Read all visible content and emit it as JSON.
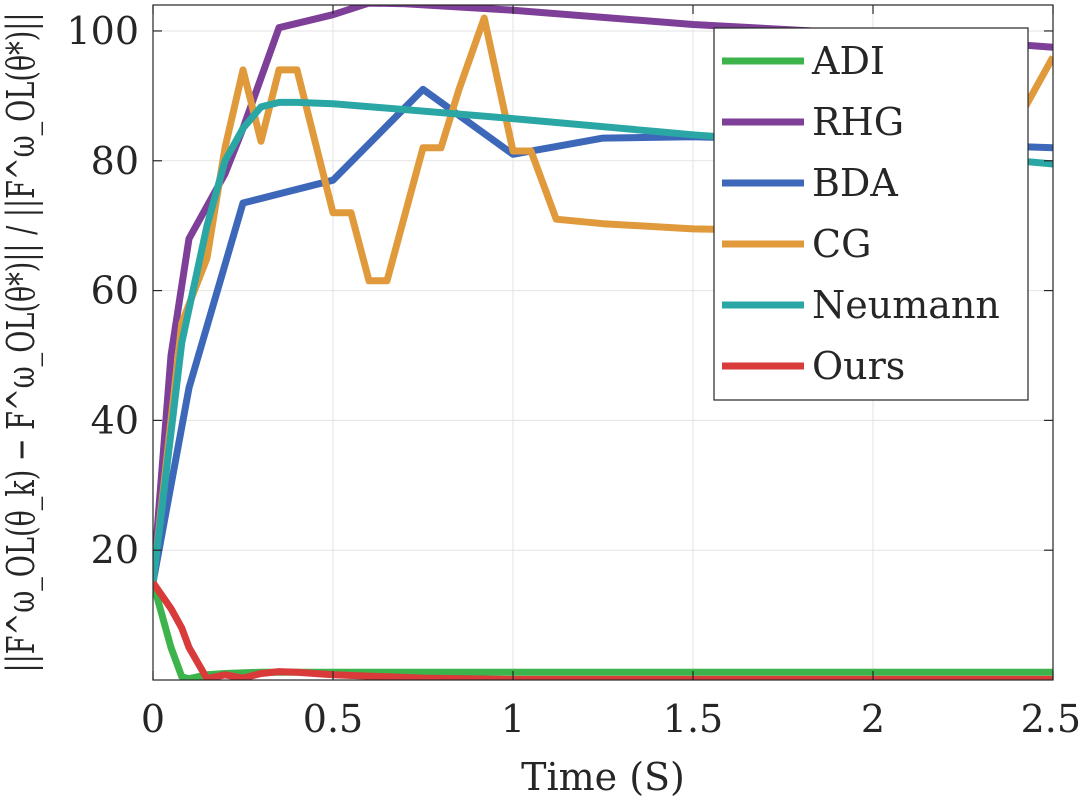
{
  "chart_data": {
    "type": "line",
    "xlabel": "Time (S)",
    "ylabel": "||F^ω_OL(θ_k) − F^ω_OL(θ*)|| / ||F^ω_OL(θ*)||",
    "xlim": [
      0,
      2.5
    ],
    "ylim": [
      0,
      104
    ],
    "xticks": [
      0,
      0.5,
      1,
      1.5,
      2,
      2.5
    ],
    "xtick_labels": [
      "0",
      "0.5",
      "1",
      "1.5",
      "2",
      "2.5"
    ],
    "yticks": [
      20,
      40,
      60,
      80,
      100
    ],
    "ytick_labels": [
      "20",
      "40",
      "60",
      "80",
      "100"
    ],
    "grid": true,
    "legend_position": "top-right",
    "series": [
      {
        "name": "ADI",
        "color": "#3cb44b",
        "x": [
          0,
          0.05,
          0.08,
          0.1,
          0.15,
          0.2,
          0.3,
          0.5,
          1.0,
          1.5,
          2.0,
          2.5
        ],
        "y": [
          15,
          5,
          0.5,
          0.2,
          0.8,
          1.0,
          1.2,
          1.2,
          1.2,
          1.2,
          1.2,
          1.2
        ]
      },
      {
        "name": "RHG",
        "color": "#7e3f98",
        "x": [
          0,
          0.05,
          0.1,
          0.2,
          0.25,
          0.35,
          0.5,
          0.6,
          0.7,
          1.0,
          1.5,
          2.0,
          2.5
        ],
        "y": [
          15,
          50,
          68,
          78,
          85,
          100.5,
          102.5,
          104.3,
          104.2,
          103.2,
          101,
          99.5,
          97.5
        ]
      },
      {
        "name": "BDA",
        "color": "#3d67b8",
        "x": [
          0,
          0.1,
          0.25,
          0.5,
          0.75,
          1.0,
          1.25,
          1.5,
          2.0,
          2.5
        ],
        "y": [
          15,
          45,
          73.5,
          77,
          91,
          81,
          83.5,
          83.7,
          83,
          82
        ]
      },
      {
        "name": "CG",
        "color": "#e09a3c",
        "x": [
          0,
          0.08,
          0.15,
          0.2,
          0.25,
          0.3,
          0.35,
          0.4,
          0.5,
          0.55,
          0.6,
          0.65,
          0.75,
          0.8,
          0.85,
          0.92,
          1.0,
          1.05,
          1.12,
          1.25,
          1.5,
          2.0,
          2.1,
          2.2,
          2.3,
          2.4,
          2.5
        ],
        "y": [
          15,
          55,
          65,
          82,
          94,
          83,
          94,
          94,
          72,
          72,
          61.5,
          61.5,
          82,
          82,
          91,
          102,
          81.5,
          81.5,
          71,
          70.3,
          69.5,
          69,
          82,
          93,
          82,
          86,
          96
        ]
      },
      {
        "name": "Neumann",
        "color": "#2aa7a4",
        "x": [
          0,
          0.08,
          0.15,
          0.2,
          0.25,
          0.3,
          0.35,
          0.4,
          0.5,
          1.0,
          1.5,
          2.0,
          2.5
        ],
        "y": [
          15,
          52,
          70,
          80,
          85,
          88.3,
          89,
          89,
          88.8,
          86.5,
          84,
          82,
          79.5
        ]
      },
      {
        "name": "Ours",
        "color": "#d93a3a",
        "x": [
          0,
          0.05,
          0.08,
          0.1,
          0.15,
          0.2,
          0.25,
          0.3,
          0.35,
          0.4,
          0.5,
          0.75,
          1.0,
          1.5,
          2.0,
          2.5
        ],
        "y": [
          15,
          11,
          8,
          5,
          0.2,
          0.8,
          0.3,
          1.0,
          1.3,
          1.2,
          0.8,
          0.3,
          0.1,
          0.1,
          0.1,
          0.1
        ]
      }
    ]
  }
}
